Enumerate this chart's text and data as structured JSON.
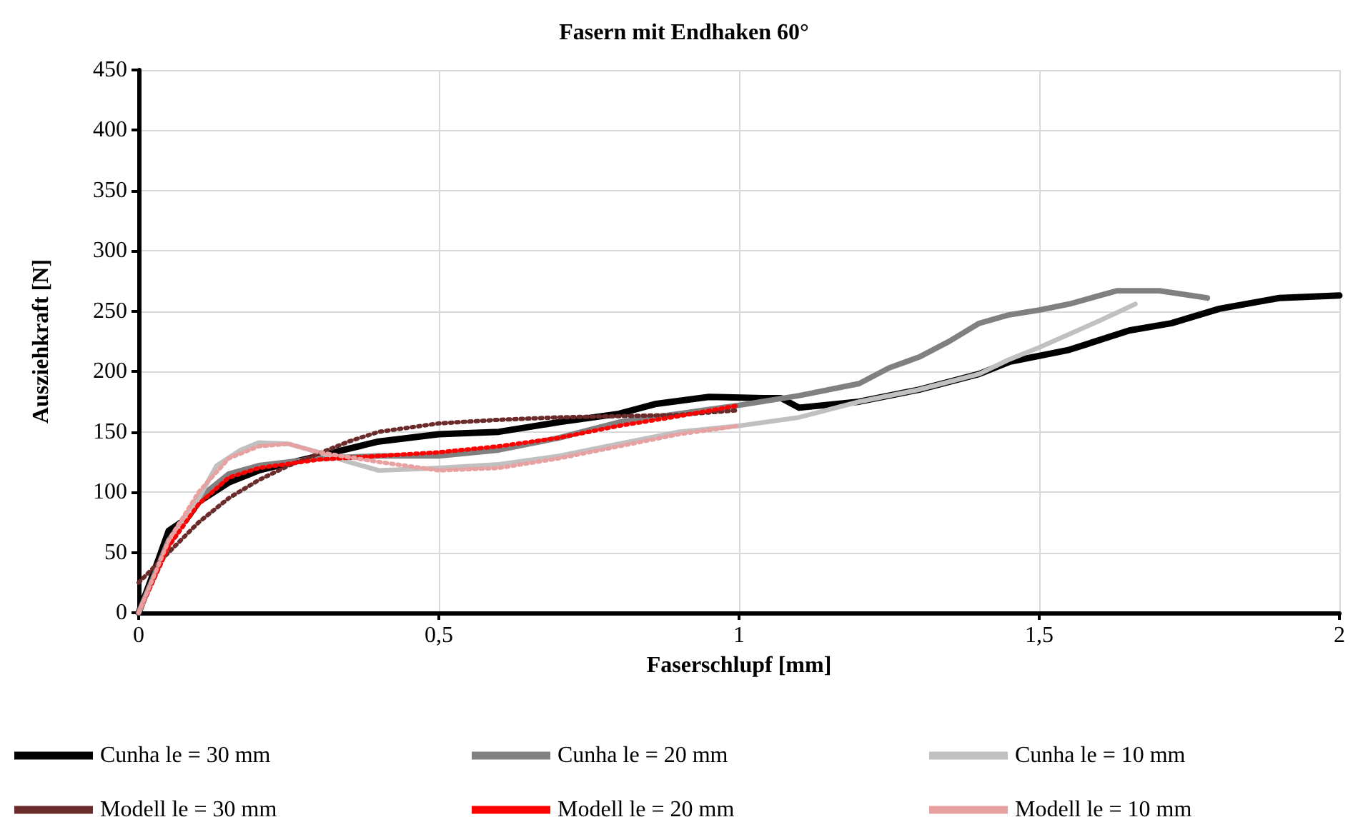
{
  "chart_data": {
    "type": "line",
    "title": "Fasern mit Endhaken 60°",
    "xlabel": "Faserschlupf [mm]",
    "ylabel": "Ausziehkraft [N]",
    "xlim": [
      0,
      2
    ],
    "xticks": [
      0,
      {
        "value": 0.5,
        "label": "0,5"
      },
      1,
      {
        "value": 1.5,
        "label": "1,5"
      },
      2
    ],
    "ylim": [
      0,
      450
    ],
    "yticks": [
      0,
      50,
      100,
      150,
      200,
      250,
      300,
      350,
      400,
      450
    ],
    "grid": true,
    "legend": "bottom",
    "marker": "none",
    "series": [
      {
        "name": "Cunha le = 30 mm",
        "color": "#000000",
        "line_style": "solid",
        "x": [
          0,
          0.03,
          0.05,
          0.08,
          0.1,
          0.15,
          0.2,
          0.3,
          0.4,
          0.5,
          0.6,
          0.7,
          0.8,
          0.86,
          0.95,
          1.04,
          1.07,
          1.1,
          1.2,
          1.3,
          1.4,
          1.45,
          1.55,
          1.65,
          1.72,
          1.8,
          1.9,
          2
        ],
        "values": [
          0,
          40,
          68,
          78,
          92,
          108,
          118,
          130,
          142,
          148,
          150,
          158,
          165,
          173,
          179,
          178,
          178,
          170,
          175,
          185,
          198,
          208,
          218,
          234,
          240,
          252,
          261,
          263
        ]
      },
      {
        "name": "Cunha le = 20 mm",
        "color": "#808080",
        "line_style": "solid",
        "x": [
          0,
          0.05,
          0.1,
          0.15,
          0.2,
          0.3,
          0.4,
          0.5,
          0.6,
          0.7,
          0.8,
          0.9,
          1,
          1.1,
          1.2,
          1.25,
          1.3,
          1.35,
          1.4,
          1.45,
          1.5,
          1.55,
          1.63,
          1.7,
          1.78
        ],
        "values": [
          0,
          60,
          95,
          115,
          122,
          128,
          130,
          130,
          135,
          145,
          158,
          165,
          172,
          180,
          190,
          203,
          212,
          225,
          240,
          247,
          251,
          256,
          267,
          267,
          261
        ]
      },
      {
        "name": "Cunha le = 10 mm",
        "color": "#c0c0c0",
        "line_style": "solid",
        "x": [
          0,
          0.05,
          0.1,
          0.13,
          0.17,
          0.2,
          0.25,
          0.3,
          0.35,
          0.4,
          0.5,
          0.6,
          0.7,
          0.8,
          0.9,
          1,
          1.1,
          1.2,
          1.3,
          1.4,
          1.45,
          1.5,
          1.6,
          1.66
        ],
        "values": [
          0,
          55,
          95,
          122,
          135,
          141,
          140,
          133,
          125,
          118,
          120,
          123,
          130,
          140,
          150,
          155,
          162,
          175,
          185,
          198,
          210,
          220,
          242,
          256
        ]
      },
      {
        "name": "Modell le = 30 mm",
        "color": "#6b2b2b",
        "line_style": "dotted",
        "x": [
          0,
          0.05,
          0.1,
          0.15,
          0.2,
          0.25,
          0.3,
          0.35,
          0.4,
          0.5,
          0.6,
          0.7,
          0.8,
          0.9,
          0.95,
          1
        ],
        "values": [
          25,
          50,
          75,
          95,
          110,
          122,
          132,
          142,
          150,
          157,
          160,
          162,
          163,
          164,
          166,
          168
        ]
      },
      {
        "name": "Modell le = 20 mm",
        "color": "#ff0000",
        "line_style": "dotted",
        "x": [
          0,
          0.05,
          0.1,
          0.15,
          0.2,
          0.3,
          0.4,
          0.5,
          0.6,
          0.7,
          0.8,
          0.9,
          1
        ],
        "values": [
          0,
          55,
          90,
          112,
          120,
          127,
          130,
          133,
          138,
          145,
          155,
          163,
          172
        ]
      },
      {
        "name": "Modell le = 10 mm",
        "color": "#e8a0a0",
        "line_style": "dotted",
        "x": [
          0,
          0.05,
          0.1,
          0.15,
          0.2,
          0.25,
          0.3,
          0.4,
          0.5,
          0.6,
          0.7,
          0.8,
          0.9,
          1
        ],
        "values": [
          0,
          60,
          100,
          128,
          138,
          140,
          133,
          125,
          118,
          120,
          128,
          138,
          148,
          155
        ]
      }
    ]
  }
}
